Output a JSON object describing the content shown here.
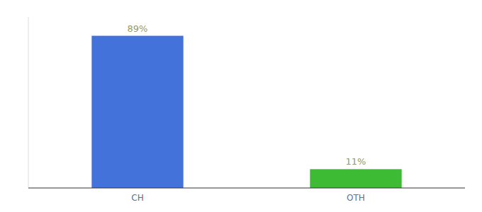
{
  "chart_data": {
    "type": "bar",
    "categories": [
      "CH",
      "OTH"
    ],
    "values": [
      89,
      11
    ],
    "value_labels": [
      "89%",
      "11%"
    ],
    "colors": [
      "#4472db",
      "#3dbb35"
    ],
    "ylim": [
      0,
      100
    ],
    "data_labels": true,
    "tick_labels": "x",
    "grid": false
  }
}
